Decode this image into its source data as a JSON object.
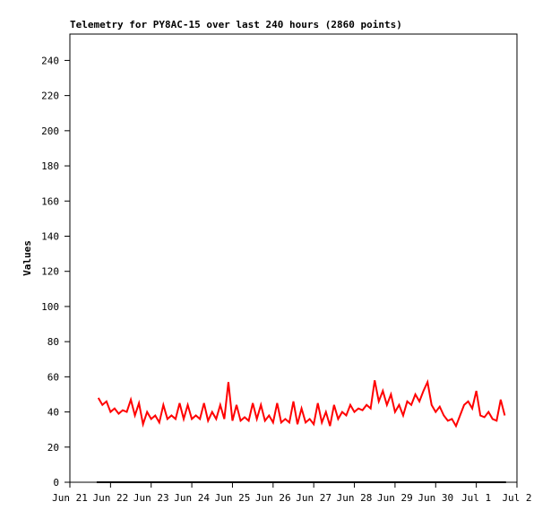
{
  "chart_data": {
    "type": "line",
    "title": "Telemetry for PY8AC-15 over last 240 hours (2860 points)",
    "y_label": "Values",
    "xlim": [
      0,
      11
    ],
    "xticks": [
      {
        "value": 0,
        "label": "Jun 21"
      },
      {
        "value": 1,
        "label": "Jun 22"
      },
      {
        "value": 2,
        "label": "Jun 23"
      },
      {
        "value": 3,
        "label": "Jun 24"
      },
      {
        "value": 4,
        "label": "Jun 25"
      },
      {
        "value": 5,
        "label": "Jun 26"
      },
      {
        "value": 6,
        "label": "Jun 27"
      },
      {
        "value": 7,
        "label": "Jun 28"
      },
      {
        "value": 8,
        "label": "Jun 29"
      },
      {
        "value": 9,
        "label": "Jun 30"
      },
      {
        "value": 10,
        "label": "Jul 1"
      },
      {
        "value": 11,
        "label": "Jul 2"
      }
    ],
    "ylim": [
      0,
      255
    ],
    "yticks": [
      0,
      20,
      40,
      60,
      80,
      100,
      120,
      140,
      160,
      180,
      200,
      220,
      240
    ],
    "series": [
      {
        "color": "#ff0000",
        "x": [
          0.7,
          0.8,
          0.9,
          1.0,
          1.1,
          1.2,
          1.3,
          1.4,
          1.5,
          1.6,
          1.7,
          1.8,
          1.9,
          2.0,
          2.1,
          2.2,
          2.3,
          2.4,
          2.5,
          2.6,
          2.7,
          2.8,
          2.9,
          3.0,
          3.1,
          3.2,
          3.3,
          3.4,
          3.5,
          3.6,
          3.7,
          3.8,
          3.9,
          4.0,
          4.1,
          4.2,
          4.3,
          4.4,
          4.5,
          4.6,
          4.7,
          4.8,
          4.9,
          5.0,
          5.1,
          5.2,
          5.3,
          5.4,
          5.5,
          5.6,
          5.7,
          5.8,
          5.9,
          6.0,
          6.1,
          6.2,
          6.3,
          6.4,
          6.5,
          6.6,
          6.7,
          6.8,
          6.9,
          7.0,
          7.1,
          7.2,
          7.3,
          7.4,
          7.5,
          7.6,
          7.7,
          7.8,
          7.9,
          8.0,
          8.1,
          8.2,
          8.3,
          8.4,
          8.5,
          8.6,
          8.7,
          8.8,
          8.9,
          9.0,
          9.1,
          9.2,
          9.3,
          9.4,
          9.5,
          9.6,
          9.7,
          9.8,
          9.9,
          10.0,
          10.1,
          10.2,
          10.3,
          10.4,
          10.5,
          10.6,
          10.7
        ],
        "values": [
          48,
          44,
          46,
          40,
          42,
          39,
          41,
          40,
          47,
          38,
          45,
          33,
          40,
          36,
          38,
          34,
          44,
          36,
          38,
          36,
          45,
          36,
          44,
          36,
          38,
          36,
          45,
          35,
          40,
          36,
          44,
          36,
          57,
          35,
          44,
          35,
          37,
          35,
          45,
          36,
          44,
          35,
          38,
          34,
          45,
          34,
          36,
          34,
          46,
          33,
          42,
          34,
          36,
          33,
          45,
          34,
          40,
          32,
          44,
          36,
          40,
          38,
          44,
          40,
          42,
          41,
          44,
          42,
          58,
          46,
          52,
          44,
          50,
          40,
          44,
          38,
          46,
          44,
          50,
          46,
          52,
          57,
          44,
          40,
          43,
          38,
          35,
          36,
          32,
          38,
          44,
          46,
          42,
          52,
          38,
          37,
          40,
          36,
          35,
          47,
          38
        ]
      },
      {
        "color": "#000000",
        "x": [
          0.66,
          10.73
        ],
        "values": [
          0,
          0
        ]
      }
    ]
  }
}
